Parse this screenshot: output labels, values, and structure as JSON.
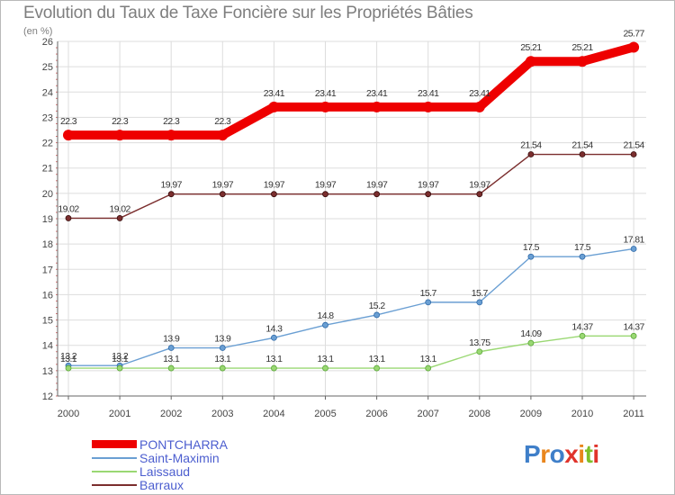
{
  "title": "Evolution du Taux de Taxe Foncière sur les Propriétés Bâties",
  "unit_label": "(en %)",
  "chart_data": {
    "type": "line",
    "title": "Evolution du Taux de Taxe Foncière sur les Propriétés Bâties",
    "ylabel": "(en %)",
    "xlabel": "",
    "x": [
      "2000",
      "2001",
      "2002",
      "2003",
      "2004",
      "2005",
      "2006",
      "2007",
      "2008",
      "2009",
      "2010",
      "2011"
    ],
    "ylim": [
      12,
      26
    ],
    "yticks": [
      "12",
      "13",
      "14",
      "15",
      "16",
      "17",
      "18",
      "19",
      "20",
      "21",
      "22",
      "23",
      "24",
      "25",
      "26"
    ],
    "grid": true,
    "legend_position": "bottom-left",
    "series": [
      {
        "name": "PONTCHARRA",
        "color": "#ee0000",
        "values": [
          22.3,
          22.3,
          22.3,
          22.3,
          23.41,
          23.41,
          23.41,
          23.41,
          23.41,
          25.21,
          25.21,
          25.77
        ],
        "labels": [
          "22.3",
          "22.3",
          "22.3",
          "22.3",
          "23.41",
          "23.41",
          "23.41",
          "23.41",
          "23.41",
          "25.21",
          "25.21",
          "25.77"
        ]
      },
      {
        "name": "Saint-Maximin",
        "color": "#6a9fd3",
        "values": [
          13.2,
          13.2,
          13.9,
          13.9,
          14.3,
          14.8,
          15.2,
          15.7,
          15.7,
          17.5,
          17.5,
          17.81
        ],
        "labels": [
          "13.2",
          "13.2",
          "13.9",
          "13.9",
          "14.3",
          "14.8",
          "15.2",
          "15.7",
          "15.7",
          "17.5",
          "17.5",
          "17.81"
        ]
      },
      {
        "name": "Laissaud",
        "color": "#9ad873",
        "values": [
          13.1,
          13.1,
          13.1,
          13.1,
          13.1,
          13.1,
          13.1,
          13.1,
          13.75,
          14.09,
          14.37,
          14.37
        ],
        "labels": [
          "13.1",
          "13.1",
          "13.1",
          "13.1",
          "13.1",
          "13.1",
          "13.1",
          "13.1",
          "13.75",
          "14.09",
          "14.37",
          "14.37"
        ]
      },
      {
        "name": "Barraux",
        "color": "#7b2e2e",
        "values": [
          19.02,
          19.02,
          19.97,
          19.97,
          19.97,
          19.97,
          19.97,
          19.97,
          19.97,
          21.54,
          21.54,
          21.54
        ],
        "labels": [
          "19.02",
          "19.02",
          "19.97",
          "19.97",
          "19.97",
          "19.97",
          "19.97",
          "19.97",
          "19.97",
          "21.54",
          "21.54",
          "21.54"
        ]
      }
    ]
  },
  "legend": [
    {
      "label": "PONTCHARRA",
      "color": "#ee0000"
    },
    {
      "label": "Saint-Maximin",
      "color": "#6a9fd3"
    },
    {
      "label": "Laissaud",
      "color": "#9ad873"
    },
    {
      "label": "Barraux",
      "color": "#7b2e2e"
    }
  ],
  "logo": {
    "letters": [
      "P",
      "r",
      "o",
      "x",
      "i",
      "t",
      "i"
    ],
    "colors": [
      "#3f7fc9",
      "#e9861d",
      "#3f7fc9",
      "#e0332b",
      "#e9861d",
      "#7fbf2a",
      "#e0332b"
    ]
  }
}
